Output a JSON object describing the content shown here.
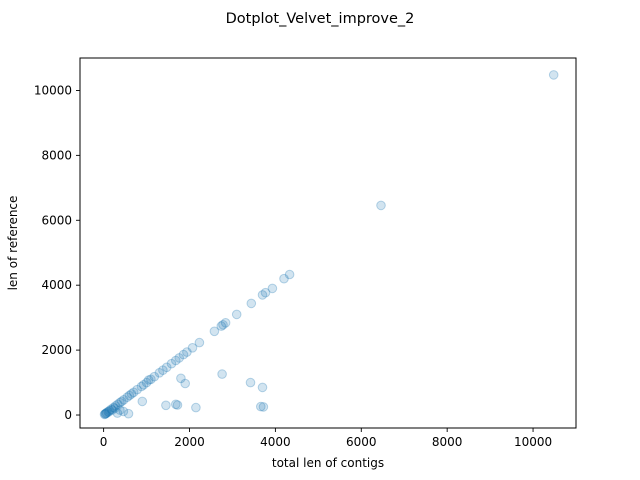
{
  "chart_data": {
    "type": "scatter",
    "title": "Dotplot_Velvet_improve_2",
    "xlabel": "total len of contigs",
    "ylabel": "len of reference",
    "xlim": [
      -550,
      11000
    ],
    "ylim": [
      -400,
      11000
    ],
    "xticks": [
      0,
      2000,
      4000,
      6000,
      8000,
      10000
    ],
    "yticks": [
      0,
      2000,
      4000,
      6000,
      8000,
      10000
    ],
    "xtick_labels": [
      "0",
      "2000",
      "4000",
      "6000",
      "8000",
      "10000"
    ],
    "ytick_labels": [
      "0",
      "2000",
      "4000",
      "6000",
      "8000",
      "10000"
    ],
    "grid": false,
    "marker_color": "#1f77b4",
    "marker_alpha": 0.2,
    "series": [
      {
        "x": [
          10480,
          6460,
          4330,
          4200,
          3930,
          3770,
          3700,
          3440,
          3100,
          2840,
          2780,
          2740,
          2580,
          2230,
          2070,
          1940,
          1860,
          1760,
          1680,
          1580,
          1470,
          1380,
          1300,
          1180,
          1100,
          1000,
          930,
          880,
          780,
          700,
          650,
          600,
          550,
          470,
          420,
          380,
          330,
          280,
          230,
          180,
          140,
          100,
          70,
          40,
          20,
          40,
          60,
          120,
          200,
          260,
          320,
          380,
          460,
          580,
          900,
          1050,
          1450,
          1680,
          1720,
          1800,
          1900,
          2150,
          2760,
          3420,
          3700,
          3660,
          3720
        ],
        "y": [
          10480,
          6460,
          4330,
          4200,
          3900,
          3770,
          3700,
          3440,
          3100,
          2840,
          2780,
          2740,
          2580,
          2230,
          2070,
          1940,
          1860,
          1760,
          1680,
          1580,
          1470,
          1380,
          1300,
          1180,
          1100,
          1000,
          930,
          880,
          780,
          700,
          650,
          600,
          550,
          470,
          420,
          380,
          330,
          280,
          230,
          180,
          140,
          100,
          70,
          40,
          20,
          30,
          50,
          100,
          150,
          210,
          60,
          150,
          110,
          40,
          420,
          1080,
          300,
          330,
          310,
          1130,
          970,
          230,
          1260,
          1000,
          850,
          260,
          250
        ]
      }
    ]
  }
}
